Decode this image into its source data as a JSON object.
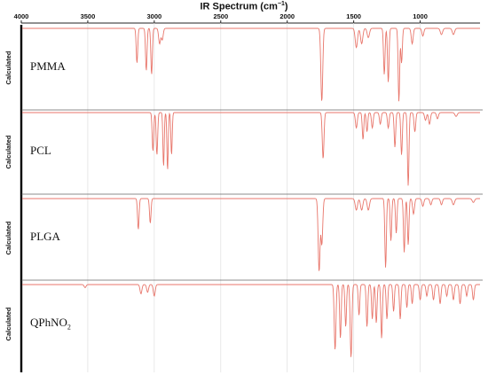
{
  "chart_data": {
    "type": "line",
    "title_main": "IR Spectrum (cm",
    "title_sup": "−1",
    "title_close": ")",
    "xlim": [
      4000,
      550
    ],
    "xticks": [
      "4000",
      "3500",
      "3000",
      "2500",
      "2000",
      "1500",
      "1000"
    ],
    "ylabel": "Calculated",
    "color": "#e8766b",
    "panels": [
      {
        "label": "PMMA",
        "label_sub": "",
        "peaks": [
          [
            3130,
            0.45,
            8
          ],
          [
            3060,
            0.55,
            8
          ],
          [
            3020,
            0.6,
            8
          ],
          [
            2960,
            0.2,
            10
          ],
          [
            2940,
            0.15,
            10
          ],
          [
            1740,
            0.95,
            10
          ],
          [
            1480,
            0.25,
            12
          ],
          [
            1440,
            0.2,
            12
          ],
          [
            1390,
            0.12,
            12
          ],
          [
            1270,
            0.6,
            8
          ],
          [
            1240,
            0.7,
            8
          ],
          [
            1160,
            0.95,
            8
          ],
          [
            1140,
            0.45,
            8
          ],
          [
            1060,
            0.2,
            10
          ],
          [
            980,
            0.1,
            10
          ],
          [
            840,
            0.08,
            12
          ],
          [
            750,
            0.08,
            12
          ]
        ]
      },
      {
        "label": "PCL",
        "label_sub": "",
        "peaks": [
          [
            3010,
            0.5,
            8
          ],
          [
            2980,
            0.55,
            8
          ],
          [
            2930,
            0.7,
            7
          ],
          [
            2900,
            0.75,
            7
          ],
          [
            2870,
            0.55,
            7
          ],
          [
            1730,
            0.6,
            9
          ],
          [
            1480,
            0.2,
            10
          ],
          [
            1430,
            0.35,
            8
          ],
          [
            1400,
            0.25,
            8
          ],
          [
            1360,
            0.2,
            9
          ],
          [
            1300,
            0.15,
            9
          ],
          [
            1240,
            0.2,
            9
          ],
          [
            1190,
            0.45,
            8
          ],
          [
            1140,
            0.55,
            8
          ],
          [
            1090,
            0.95,
            8
          ],
          [
            1040,
            0.25,
            9
          ],
          [
            960,
            0.1,
            10
          ],
          [
            930,
            0.15,
            10
          ],
          [
            870,
            0.08,
            10
          ],
          [
            730,
            0.05,
            12
          ]
        ]
      },
      {
        "label": "PLGA",
        "label_sub": "",
        "peaks": [
          [
            3120,
            0.4,
            8
          ],
          [
            3030,
            0.32,
            8
          ],
          [
            1760,
            0.95,
            10
          ],
          [
            1740,
            0.6,
            10
          ],
          [
            1480,
            0.15,
            12
          ],
          [
            1440,
            0.15,
            12
          ],
          [
            1390,
            0.15,
            12
          ],
          [
            1260,
            0.9,
            8
          ],
          [
            1220,
            0.55,
            8
          ],
          [
            1180,
            0.45,
            8
          ],
          [
            1120,
            0.7,
            8
          ],
          [
            1090,
            0.6,
            8
          ],
          [
            1050,
            0.2,
            10
          ],
          [
            980,
            0.1,
            10
          ],
          [
            920,
            0.08,
            10
          ],
          [
            840,
            0.08,
            10
          ],
          [
            750,
            0.08,
            12
          ],
          [
            600,
            0.05,
            12
          ]
        ]
      },
      {
        "label": "QPhNO",
        "label_sub": "2",
        "peaks": [
          [
            3520,
            0.04,
            10
          ],
          [
            3100,
            0.12,
            10
          ],
          [
            3050,
            0.1,
            10
          ],
          [
            3000,
            0.15,
            10
          ],
          [
            1640,
            0.85,
            9
          ],
          [
            1600,
            0.7,
            8
          ],
          [
            1560,
            0.55,
            8
          ],
          [
            1520,
            0.95,
            9
          ],
          [
            1460,
            0.4,
            8
          ],
          [
            1400,
            0.55,
            8
          ],
          [
            1360,
            0.45,
            8
          ],
          [
            1330,
            0.5,
            8
          ],
          [
            1290,
            0.7,
            8
          ],
          [
            1250,
            0.45,
            8
          ],
          [
            1200,
            0.35,
            8
          ],
          [
            1150,
            0.45,
            8
          ],
          [
            1100,
            0.3,
            8
          ],
          [
            1060,
            0.25,
            8
          ],
          [
            1000,
            0.2,
            9
          ],
          [
            950,
            0.15,
            9
          ],
          [
            900,
            0.2,
            9
          ],
          [
            850,
            0.25,
            9
          ],
          [
            800,
            0.15,
            9
          ],
          [
            750,
            0.2,
            9
          ],
          [
            700,
            0.25,
            9
          ],
          [
            650,
            0.15,
            9
          ],
          [
            600,
            0.2,
            9
          ]
        ]
      }
    ]
  }
}
